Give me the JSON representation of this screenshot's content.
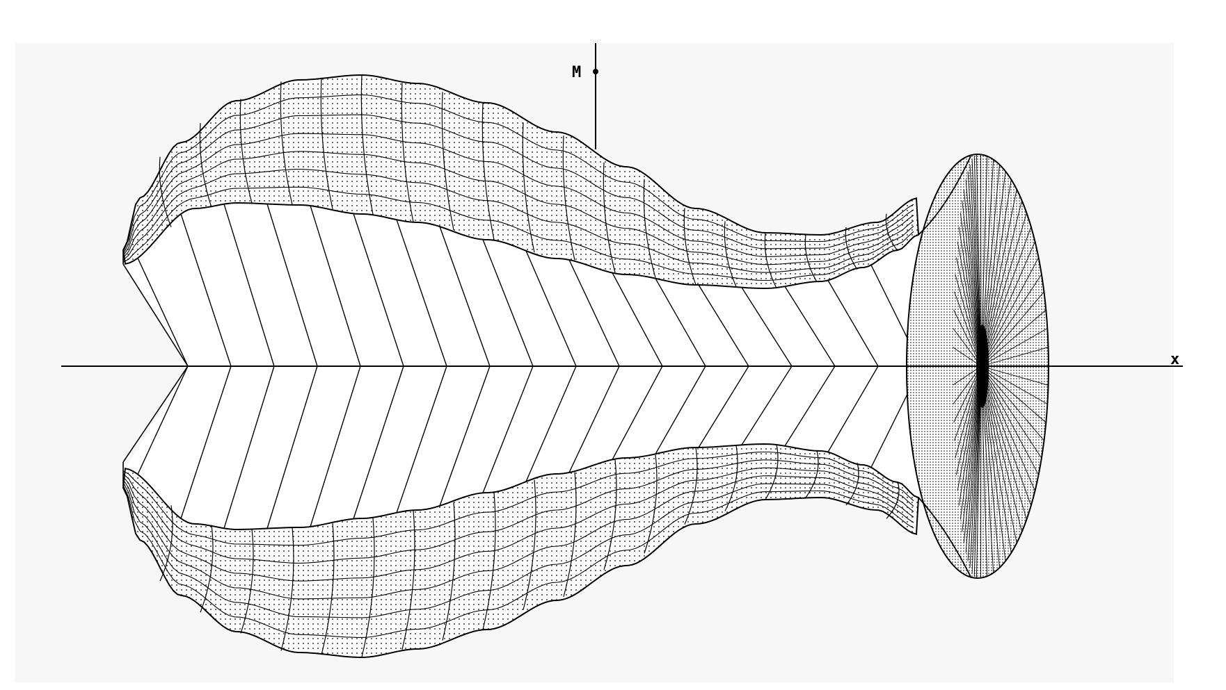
{
  "figure": {
    "axis_labels": {
      "vertical": "M",
      "horizontal": "x"
    },
    "style": {
      "background": "#ffffff",
      "frame_background": "#f7f7f7",
      "ink": "#000000",
      "surface_fill": "#ffffff",
      "stipple": "#000000"
    }
  }
}
